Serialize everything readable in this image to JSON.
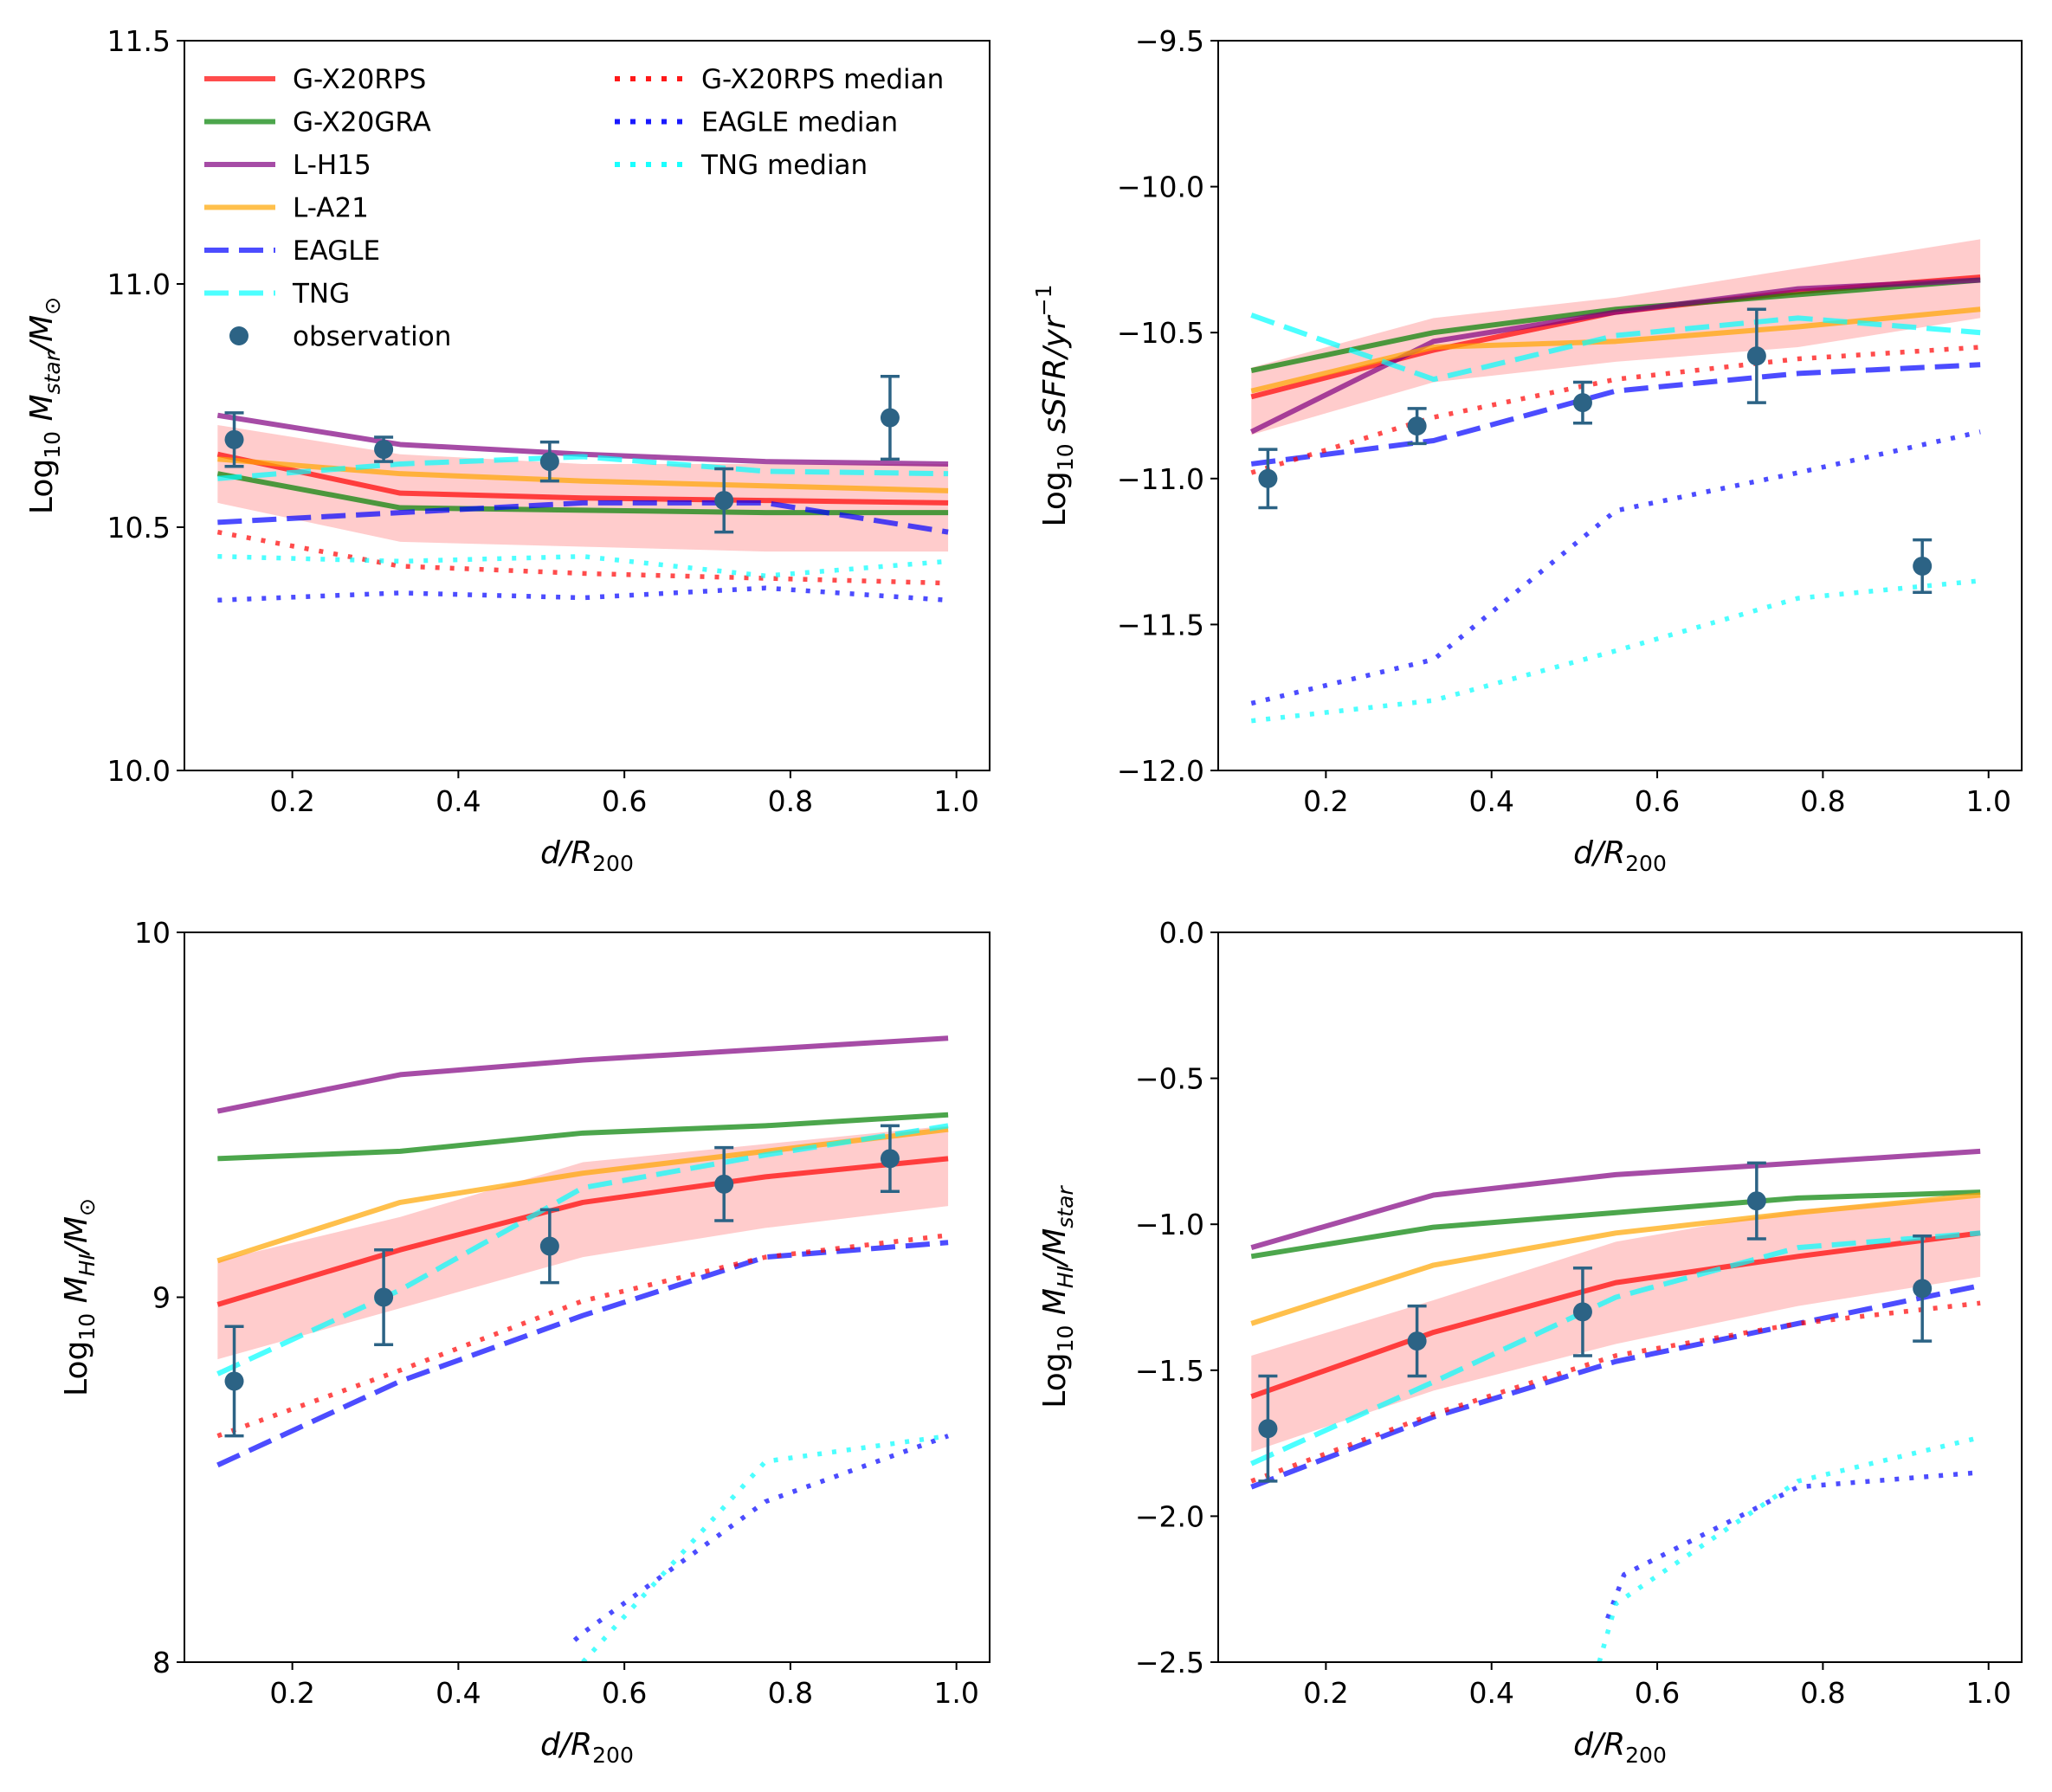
{
  "figure": {
    "legend": {
      "col1": [
        {
          "label": "G-X20RPS",
          "color": "#ff0000",
          "style": "solid"
        },
        {
          "label": "G-X20GRA",
          "color": "#008000",
          "style": "solid"
        },
        {
          "label": "L-H15",
          "color": "#800080",
          "style": "solid"
        },
        {
          "label": "L-A21",
          "color": "#ffa500",
          "style": "solid"
        },
        {
          "label": "EAGLE",
          "color": "#0000ff",
          "style": "dashed"
        },
        {
          "label": "TNG",
          "color": "#00ffff",
          "style": "dashed"
        },
        {
          "label": "observation",
          "color": "#2c6385",
          "style": "marker"
        }
      ],
      "col2": [
        {
          "label": "G-X20RPS median",
          "color": "#ff0000",
          "style": "dotted"
        },
        {
          "label": "EAGLE median",
          "color": "#0000ff",
          "style": "dotted"
        },
        {
          "label": "TNG median",
          "color": "#00ffff",
          "style": "dotted"
        }
      ]
    }
  },
  "chart_data": [
    {
      "type": "line",
      "panel": "top-left",
      "xlabel": "d/R200",
      "ylabel": "Log10 Mstar/M⊙",
      "xlim": [
        0.07,
        1.04
      ],
      "ylim": [
        10.0,
        11.5
      ],
      "xticks": [
        "0.2",
        "0.4",
        "0.6",
        "0.8",
        "1.0"
      ],
      "yticks": [
        "10.0",
        "10.5",
        "11.0",
        "11.5"
      ],
      "band": {
        "color": "#ff0000",
        "x": [
          0.11,
          0.33,
          0.55,
          0.77,
          0.99
        ],
        "low": [
          10.55,
          10.47,
          10.46,
          10.45,
          10.45
        ],
        "high": [
          10.71,
          10.65,
          10.63,
          10.63,
          10.63
        ]
      },
      "series": [
        {
          "name": "G-X20RPS",
          "style": "solid",
          "x": [
            0.11,
            0.33,
            0.55,
            0.77,
            0.99
          ],
          "y": [
            10.65,
            10.57,
            10.56,
            10.555,
            10.55
          ]
        },
        {
          "name": "G-X20GRA",
          "style": "solid",
          "x": [
            0.11,
            0.33,
            0.55,
            0.77,
            0.99
          ],
          "y": [
            10.61,
            10.54,
            10.535,
            10.53,
            10.53
          ]
        },
        {
          "name": "L-H15",
          "style": "solid",
          "x": [
            0.11,
            0.33,
            0.55,
            0.77,
            0.99
          ],
          "y": [
            10.73,
            10.67,
            10.65,
            10.635,
            10.63
          ]
        },
        {
          "name": "L-A21",
          "style": "solid",
          "x": [
            0.11,
            0.33,
            0.55,
            0.77,
            0.99
          ],
          "y": [
            10.64,
            10.61,
            10.595,
            10.585,
            10.575
          ]
        },
        {
          "name": "EAGLE",
          "style": "dashed",
          "x": [
            0.11,
            0.33,
            0.55,
            0.77,
            0.99
          ],
          "y": [
            10.51,
            10.53,
            10.55,
            10.55,
            10.49
          ]
        },
        {
          "name": "TNG",
          "style": "dashed",
          "x": [
            0.11,
            0.33,
            0.55,
            0.77,
            0.99
          ],
          "y": [
            10.6,
            10.63,
            10.645,
            10.615,
            10.61
          ]
        },
        {
          "name": "G-X20RPS median",
          "style": "dotted",
          "x": [
            0.11,
            0.33,
            0.55,
            0.77,
            0.99
          ],
          "y": [
            10.49,
            10.42,
            10.405,
            10.395,
            10.385
          ]
        },
        {
          "name": "EAGLE median",
          "style": "dotted",
          "x": [
            0.11,
            0.33,
            0.55,
            0.77,
            0.99
          ],
          "y": [
            10.35,
            10.365,
            10.355,
            10.375,
            10.35
          ]
        },
        {
          "name": "TNG median",
          "style": "dotted",
          "x": [
            0.11,
            0.33,
            0.55,
            0.77,
            0.99
          ],
          "y": [
            10.44,
            10.43,
            10.44,
            10.4,
            10.43
          ]
        }
      ],
      "observations": {
        "x": [
          0.13,
          0.31,
          0.51,
          0.72,
          0.92
        ],
        "y": [
          10.68,
          10.66,
          10.635,
          10.555,
          10.725
        ],
        "err": [
          0.055,
          0.025,
          0.04,
          0.065,
          0.085
        ]
      }
    },
    {
      "type": "line",
      "panel": "top-right",
      "xlabel": "d/R200",
      "ylabel": "Log10 sSFR/yr−1",
      "xlim": [
        0.07,
        1.04
      ],
      "ylim": [
        -12.0,
        -9.5
      ],
      "xticks": [
        "0.2",
        "0.4",
        "0.6",
        "0.8",
        "1.0"
      ],
      "yticks": [
        "−12.0",
        "−11.5",
        "−11.0",
        "−10.5",
        "−10.0",
        "−9.5"
      ],
      "band": {
        "color": "#ff0000",
        "x": [
          0.11,
          0.33,
          0.55,
          0.77,
          0.99
        ],
        "low": [
          -10.85,
          -10.67,
          -10.6,
          -10.55,
          -10.45
        ],
        "high": [
          -10.62,
          -10.45,
          -10.38,
          -10.28,
          -10.18
        ]
      },
      "series": [
        {
          "name": "G-X20RPS",
          "style": "solid",
          "x": [
            0.11,
            0.33,
            0.55,
            0.77,
            0.99
          ],
          "y": [
            -10.72,
            -10.56,
            -10.43,
            -10.36,
            -10.31
          ]
        },
        {
          "name": "G-X20GRA",
          "style": "solid",
          "x": [
            0.11,
            0.33,
            0.55,
            0.77,
            0.99
          ],
          "y": [
            -10.63,
            -10.5,
            -10.42,
            -10.37,
            -10.32
          ]
        },
        {
          "name": "L-H15",
          "style": "solid",
          "x": [
            0.11,
            0.33,
            0.55,
            0.77,
            0.99
          ],
          "y": [
            -10.84,
            -10.53,
            -10.43,
            -10.35,
            -10.32
          ]
        },
        {
          "name": "L-A21",
          "style": "solid",
          "x": [
            0.11,
            0.33,
            0.55,
            0.77,
            0.99
          ],
          "y": [
            -10.7,
            -10.55,
            -10.53,
            -10.48,
            -10.42
          ]
        },
        {
          "name": "EAGLE",
          "style": "dashed",
          "x": [
            0.11,
            0.33,
            0.55,
            0.77,
            0.99
          ],
          "y": [
            -10.95,
            -10.87,
            -10.7,
            -10.64,
            -10.61
          ]
        },
        {
          "name": "TNG",
          "style": "dashed",
          "x": [
            0.11,
            0.33,
            0.55,
            0.77,
            0.99
          ],
          "y": [
            -10.44,
            -10.66,
            -10.51,
            -10.45,
            -10.5
          ]
        },
        {
          "name": "G-X20RPS median",
          "style": "dotted",
          "x": [
            0.11,
            0.33,
            0.55,
            0.77,
            0.99
          ],
          "y": [
            -10.98,
            -10.79,
            -10.66,
            -10.59,
            -10.55
          ]
        },
        {
          "name": "EAGLE median",
          "style": "dotted",
          "x": [
            0.11,
            0.33,
            0.55,
            0.77,
            0.99
          ],
          "y": [
            -11.77,
            -11.62,
            -11.11,
            -10.98,
            -10.84
          ]
        },
        {
          "name": "TNG median",
          "style": "dotted",
          "x": [
            0.11,
            0.33,
            0.55,
            0.77,
            0.99
          ],
          "y": [
            -11.83,
            -11.76,
            -11.59,
            -11.41,
            -11.35
          ]
        }
      ],
      "observations": {
        "x": [
          0.13,
          0.31,
          0.51,
          0.72,
          0.92
        ],
        "y": [
          -11.0,
          -10.82,
          -10.74,
          -10.58,
          -11.3
        ],
        "err": [
          0.1,
          0.06,
          0.07,
          0.16,
          0.09
        ]
      }
    },
    {
      "type": "line",
      "panel": "bottom-left",
      "xlabel": "d/R200",
      "ylabel": "Log10 MHI/M⊙",
      "xlim": [
        0.07,
        1.04
      ],
      "ylim": [
        8.0,
        10.0
      ],
      "xticks": [
        "0.2",
        "0.4",
        "0.6",
        "0.8",
        "1.0"
      ],
      "yticks": [
        "8",
        "9",
        "10"
      ],
      "band": {
        "color": "#ff0000",
        "x": [
          0.11,
          0.33,
          0.55,
          0.77,
          0.99
        ],
        "low": [
          8.83,
          8.97,
          9.11,
          9.19,
          9.25
        ],
        "high": [
          9.1,
          9.22,
          9.37,
          9.42,
          9.47
        ]
      },
      "series": [
        {
          "name": "G-X20RPS",
          "style": "solid",
          "x": [
            0.11,
            0.33,
            0.55,
            0.77,
            0.99
          ],
          "y": [
            8.98,
            9.13,
            9.26,
            9.33,
            9.38
          ]
        },
        {
          "name": "G-X20GRA",
          "style": "solid",
          "x": [
            0.11,
            0.33,
            0.55,
            0.77,
            0.99
          ],
          "y": [
            9.38,
            9.4,
            9.45,
            9.47,
            9.5
          ]
        },
        {
          "name": "L-H15",
          "style": "solid",
          "x": [
            0.11,
            0.33,
            0.55,
            0.77,
            0.99
          ],
          "y": [
            9.51,
            9.61,
            9.65,
            9.68,
            9.71
          ]
        },
        {
          "name": "L-A21",
          "style": "solid",
          "x": [
            0.11,
            0.33,
            0.55,
            0.77,
            0.99
          ],
          "y": [
            9.1,
            9.26,
            9.34,
            9.4,
            9.46
          ]
        },
        {
          "name": "EAGLE",
          "style": "dashed",
          "x": [
            0.11,
            0.33,
            0.55,
            0.77,
            0.99
          ],
          "y": [
            8.54,
            8.77,
            8.95,
            9.11,
            9.15
          ]
        },
        {
          "name": "TNG",
          "style": "dashed",
          "x": [
            0.11,
            0.33,
            0.55,
            0.77,
            0.99
          ],
          "y": [
            8.79,
            9.02,
            9.3,
            9.39,
            9.47
          ]
        },
        {
          "name": "G-X20RPS median",
          "style": "dotted",
          "x": [
            0.11,
            0.33,
            0.55,
            0.77,
            0.99
          ],
          "y": [
            8.62,
            8.8,
            8.99,
            9.11,
            9.17
          ]
        },
        {
          "name": "EAGLE median",
          "style": "dotted",
          "x": [
            0.54,
            0.55,
            0.77,
            0.99
          ],
          "y": [
            8.06,
            8.08,
            8.44,
            8.62
          ]
        },
        {
          "name": "TNG median",
          "style": "dotted",
          "x": [
            0.55,
            0.77,
            0.99
          ],
          "y": [
            8.0,
            8.55,
            8.62
          ]
        }
      ],
      "observations": {
        "x": [
          0.13,
          0.31,
          0.51,
          0.72,
          0.92
        ],
        "y": [
          8.77,
          9.0,
          9.14,
          9.31,
          9.38
        ],
        "err": [
          0.15,
          0.13,
          0.1,
          0.1,
          0.09
        ]
      }
    },
    {
      "type": "line",
      "panel": "bottom-right",
      "xlabel": "d/R200",
      "ylabel": "Log10 MHI/Mstar",
      "xlim": [
        0.07,
        1.04
      ],
      "ylim": [
        -2.5,
        0.0
      ],
      "xticks": [
        "0.2",
        "0.4",
        "0.6",
        "0.8",
        "1.0"
      ],
      "yticks": [
        "−2.5",
        "−2.0",
        "−1.5",
        "−1.0",
        "−0.5",
        "0.0"
      ],
      "band": {
        "color": "#ff0000",
        "x": [
          0.11,
          0.33,
          0.55,
          0.77,
          0.99
        ],
        "low": [
          -1.78,
          -1.57,
          -1.41,
          -1.28,
          -1.18
        ],
        "high": [
          -1.45,
          -1.26,
          -1.06,
          -0.95,
          -0.9
        ]
      },
      "series": [
        {
          "name": "G-X20RPS",
          "style": "solid",
          "x": [
            0.11,
            0.33,
            0.55,
            0.77,
            0.99
          ],
          "y": [
            -1.59,
            -1.37,
            -1.2,
            -1.11,
            -1.03
          ]
        },
        {
          "name": "G-X20GRA",
          "style": "solid",
          "x": [
            0.11,
            0.33,
            0.55,
            0.77,
            0.99
          ],
          "y": [
            -1.11,
            -1.01,
            -0.96,
            -0.91,
            -0.89
          ]
        },
        {
          "name": "L-H15",
          "style": "solid",
          "x": [
            0.11,
            0.33,
            0.55,
            0.77,
            0.99
          ],
          "y": [
            -1.08,
            -0.9,
            -0.83,
            -0.79,
            -0.75
          ]
        },
        {
          "name": "L-A21",
          "style": "solid",
          "x": [
            0.11,
            0.33,
            0.55,
            0.77,
            0.99
          ],
          "y": [
            -1.34,
            -1.14,
            -1.03,
            -0.96,
            -0.9
          ]
        },
        {
          "name": "EAGLE",
          "style": "dashed",
          "x": [
            0.11,
            0.33,
            0.55,
            0.77,
            0.99
          ],
          "y": [
            -1.9,
            -1.66,
            -1.47,
            -1.34,
            -1.21
          ]
        },
        {
          "name": "TNG",
          "style": "dashed",
          "x": [
            0.11,
            0.33,
            0.55,
            0.77,
            0.99
          ],
          "y": [
            -1.82,
            -1.54,
            -1.25,
            -1.08,
            -1.03
          ]
        },
        {
          "name": "G-X20RPS median",
          "style": "dotted",
          "x": [
            0.11,
            0.33,
            0.55,
            0.77,
            0.99
          ],
          "y": [
            -1.88,
            -1.65,
            -1.45,
            -1.34,
            -1.27
          ]
        },
        {
          "name": "EAGLE median",
          "style": "dotted",
          "x": [
            0.54,
            0.56,
            0.77,
            0.99
          ],
          "y": [
            -2.35,
            -2.2,
            -1.9,
            -1.85
          ]
        },
        {
          "name": "TNG median",
          "style": "dotted",
          "x": [
            0.53,
            0.55,
            0.77,
            0.99
          ],
          "y": [
            -2.5,
            -2.3,
            -1.88,
            -1.73
          ]
        }
      ],
      "observations": {
        "x": [
          0.13,
          0.31,
          0.51,
          0.72,
          0.92
        ],
        "y": [
          -1.7,
          -1.4,
          -1.3,
          -0.92,
          -1.22
        ],
        "err": [
          0.18,
          0.12,
          0.15,
          0.13,
          0.18
        ]
      }
    }
  ]
}
